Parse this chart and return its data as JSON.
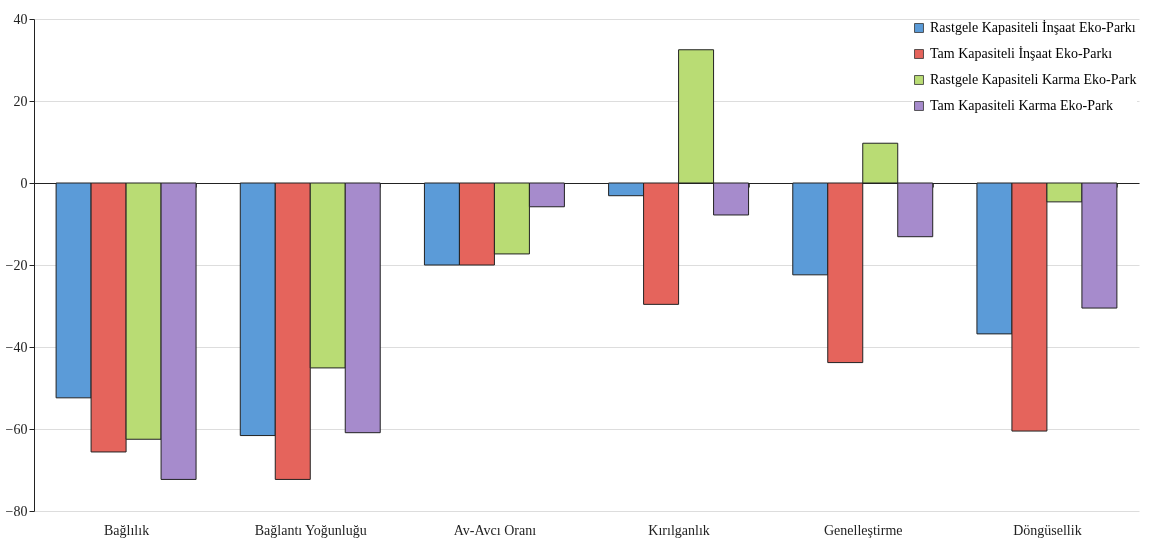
{
  "chart_data": {
    "type": "bar",
    "categories": [
      "Bağlılık",
      "Bağlantı Yoğunluğu",
      "Av-Avcı Oranı",
      "Kırılganlık",
      "Genelleştirme",
      "Döngüsellik"
    ],
    "series": [
      {
        "name": "Rastgele Kapasiteli İnşaat Eko-Parkı",
        "color": "#5b9bd8",
        "values": [
          -52.4,
          -61.6,
          -20,
          -3.1,
          -22.4,
          -36.8
        ]
      },
      {
        "name": "Tam Kapasiteli İnşaat Eko-Parkı",
        "color": "#e5645c",
        "values": [
          -65.6,
          -72.3,
          -20,
          -29.6,
          -43.8,
          -60.5
        ]
      },
      {
        "name": "Rastgele Kapasiteli Karma Eko-Park",
        "color": "#b9dc74",
        "values": [
          -62.5,
          -45.1,
          -17.3,
          32.5,
          9.7,
          -4.6
        ]
      },
      {
        "name": "Tam Kapasiteli Karma Eko-Park",
        "color": "#a68bcc",
        "values": [
          -72.3,
          -60.9,
          -5.8,
          -7.8,
          -13.1,
          -30.5
        ]
      }
    ],
    "ylim": [
      -80,
      40
    ],
    "yticks": [
      -80,
      -60,
      -40,
      -20,
      0,
      20,
      40
    ],
    "grid": "y",
    "legend": "top right"
  }
}
